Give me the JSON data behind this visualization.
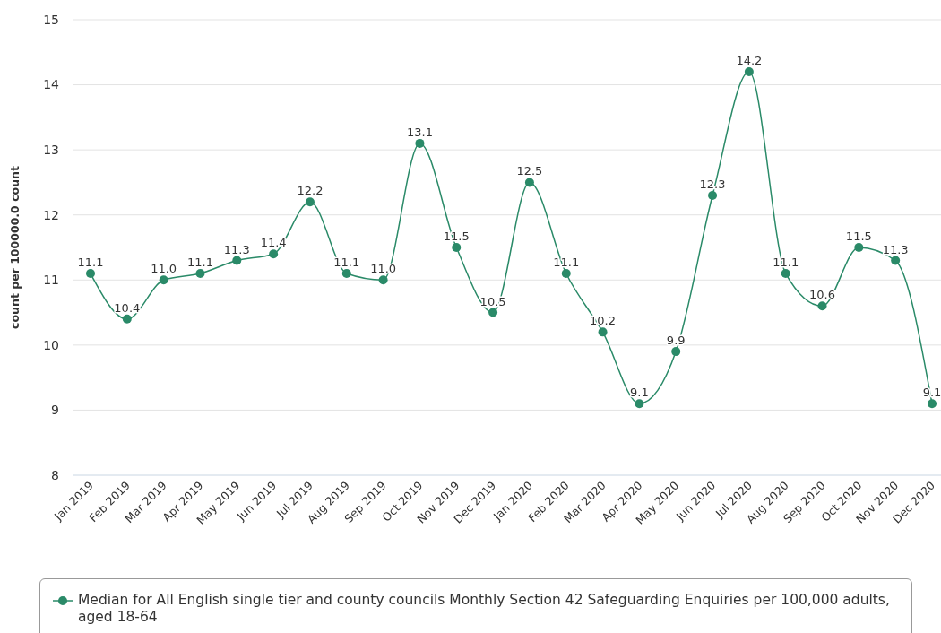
{
  "chart_data": {
    "type": "line",
    "ylabel": "count per 100000.0 count",
    "categories": [
      "Jan 2019",
      "Feb 2019",
      "Mar 2019",
      "Apr 2019",
      "May 2019",
      "Jun 2019",
      "Jul 2019",
      "Aug 2019",
      "Sep 2019",
      "Oct 2019",
      "Nov 2019",
      "Dec 2019",
      "Jan 2020",
      "Feb 2020",
      "Mar 2020",
      "Apr 2020",
      "May 2020",
      "Jun 2020",
      "Jul 2020",
      "Aug 2020",
      "Sep 2020",
      "Oct 2020",
      "Nov 2020",
      "Dec 2020"
    ],
    "series": [
      {
        "name": "Median for All English single tier and county councils Monthly Section 42 Safeguarding Enquiries per 100,000 adults, aged 18-64",
        "color": "#2a8a68",
        "values": [
          11.1,
          10.4,
          11.0,
          11.1,
          11.3,
          11.4,
          12.2,
          11.1,
          11.0,
          13.1,
          11.5,
          10.5,
          12.5,
          11.1,
          10.2,
          9.1,
          9.9,
          12.3,
          14.2,
          11.1,
          10.6,
          11.5,
          11.3,
          9.1
        ],
        "value_labels": [
          "11.1",
          "10.4",
          "11.0",
          "11.1",
          "11.3",
          "11.4",
          "12.2",
          "11.1",
          "11.0",
          "13.1",
          "11.5",
          "10.5",
          "12.5",
          "11.1",
          "10.2",
          "9.1",
          "9.9",
          "12.3",
          "14.2",
          "11.1",
          "10.6",
          "11.5",
          "11.3",
          "9.1"
        ]
      }
    ],
    "ylim": [
      8,
      15
    ],
    "yticks": [
      8,
      9,
      10,
      11,
      12,
      13,
      14,
      15
    ],
    "grid": "y",
    "legend": "bottom",
    "marker": "circle",
    "line_style": "solid"
  }
}
